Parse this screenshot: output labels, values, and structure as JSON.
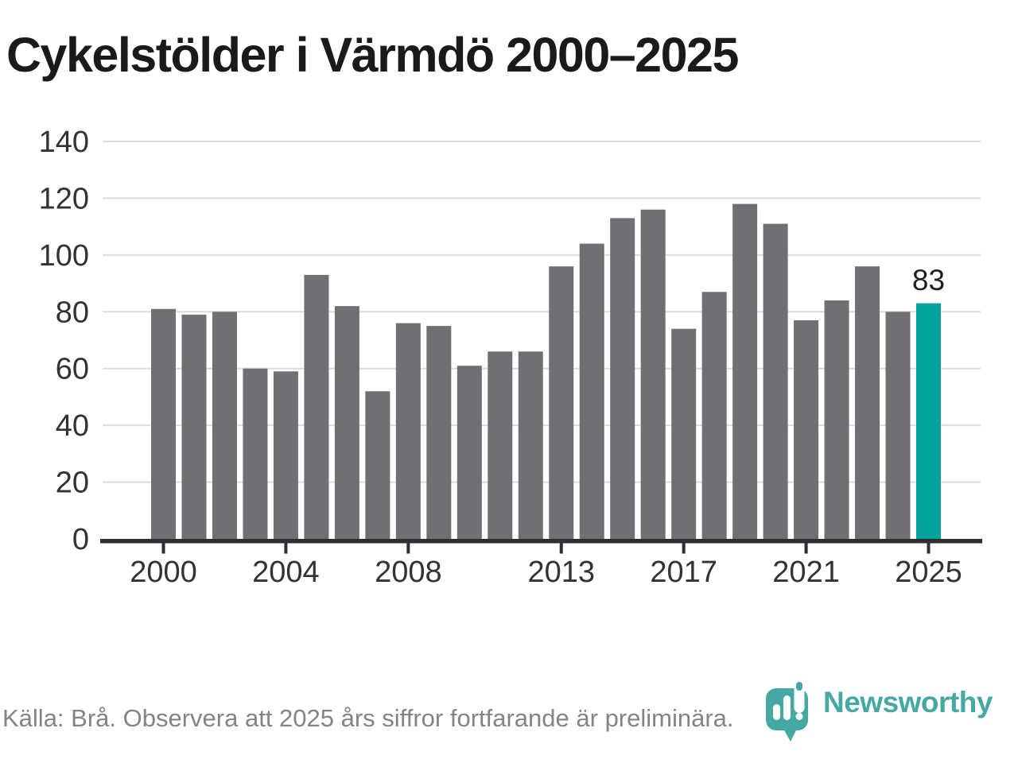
{
  "title": "Cykelstölder i Värmdö 2000–2025",
  "footer": "Källa: Brå. Observera att 2025 års siffror fortfarande är preliminära.",
  "logo": {
    "text": "Newsworthy"
  },
  "colors": {
    "title": "#1a1a1a",
    "bar": "#706f74",
    "bar_highlight": "#00a29b",
    "grid": "#dcdcdc",
    "axis": "#2e2e33",
    "tick_label": "#333333",
    "annotation": "#1f1f1f",
    "footer": "#848484",
    "logo": "#45a8a2"
  },
  "chart_data": {
    "type": "bar",
    "title": "Cykelstölder i Värmdö 2000–2025",
    "x": [
      2000,
      2001,
      2002,
      2003,
      2004,
      2005,
      2006,
      2007,
      2008,
      2009,
      2010,
      2011,
      2012,
      2013,
      2014,
      2015,
      2016,
      2017,
      2018,
      2019,
      2020,
      2021,
      2022,
      2023,
      2024,
      2025
    ],
    "values": [
      81,
      79,
      80,
      60,
      59,
      93,
      82,
      52,
      76,
      75,
      61,
      66,
      66,
      96,
      104,
      113,
      116,
      74,
      87,
      118,
      111,
      77,
      84,
      96,
      80,
      83
    ],
    "highlight_x": 2025,
    "annotations": [
      {
        "x": 2025,
        "text": "83"
      }
    ],
    "ylim": [
      0,
      140
    ],
    "yticks": [
      0,
      20,
      40,
      60,
      80,
      100,
      120,
      140
    ],
    "xticks": [
      2000,
      2004,
      2008,
      2013,
      2017,
      2021,
      2025
    ],
    "grid": "horizontal",
    "legend": "none",
    "source": "Brå"
  }
}
